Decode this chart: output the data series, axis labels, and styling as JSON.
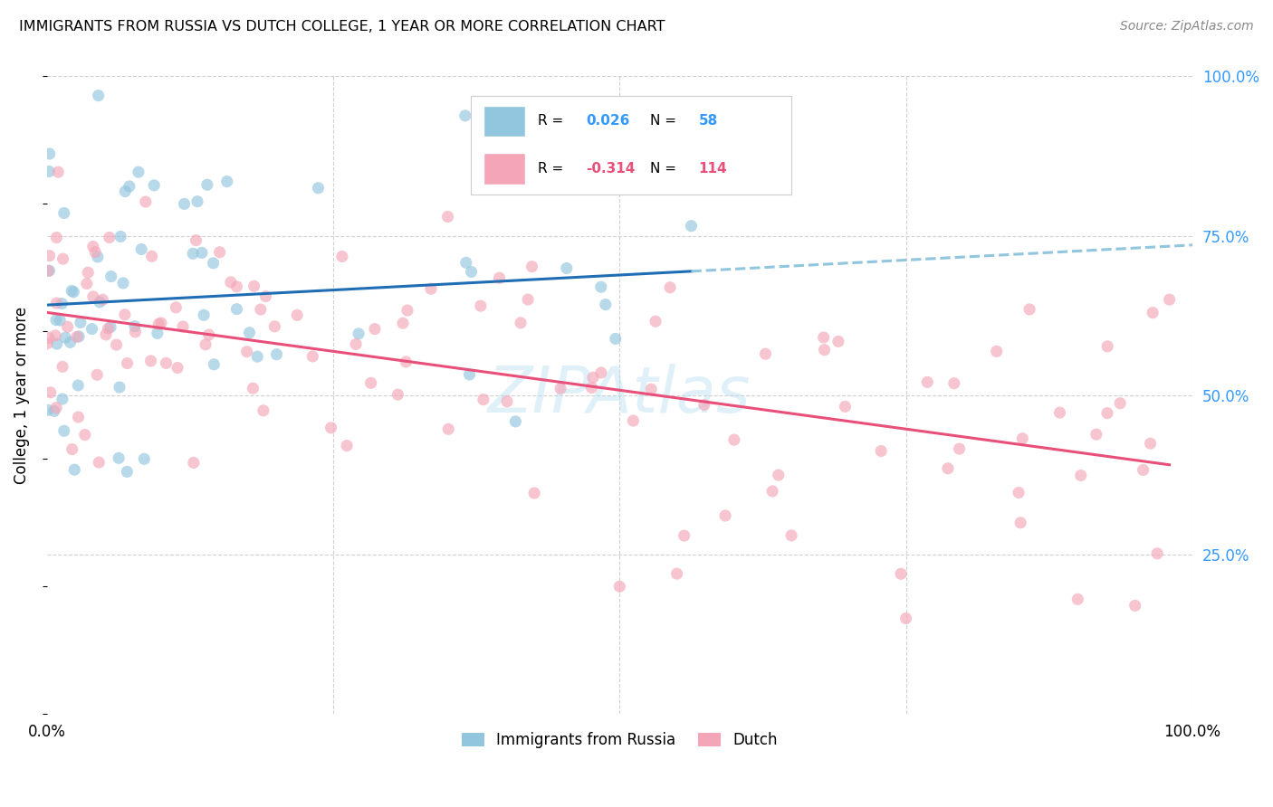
{
  "title": "IMMIGRANTS FROM RUSSIA VS DUTCH COLLEGE, 1 YEAR OR MORE CORRELATION CHART",
  "source": "Source: ZipAtlas.com",
  "ylabel": "College, 1 year or more",
  "blue_color": "#92c5de",
  "pink_color": "#f4a6b8",
  "blue_line_color": "#1f6eb5",
  "pink_line_color": "#e8507a",
  "blue_dashed_color": "#92c5de",
  "label1": "Immigrants from Russia",
  "label2": "Dutch",
  "watermark": "ZIPAtlas",
  "r1_val": "0.026",
  "n1_val": "58",
  "r2_val": "-0.314",
  "n2_val": "114",
  "accent_color": "#3399ff",
  "pink_accent_color": "#e8507a"
}
